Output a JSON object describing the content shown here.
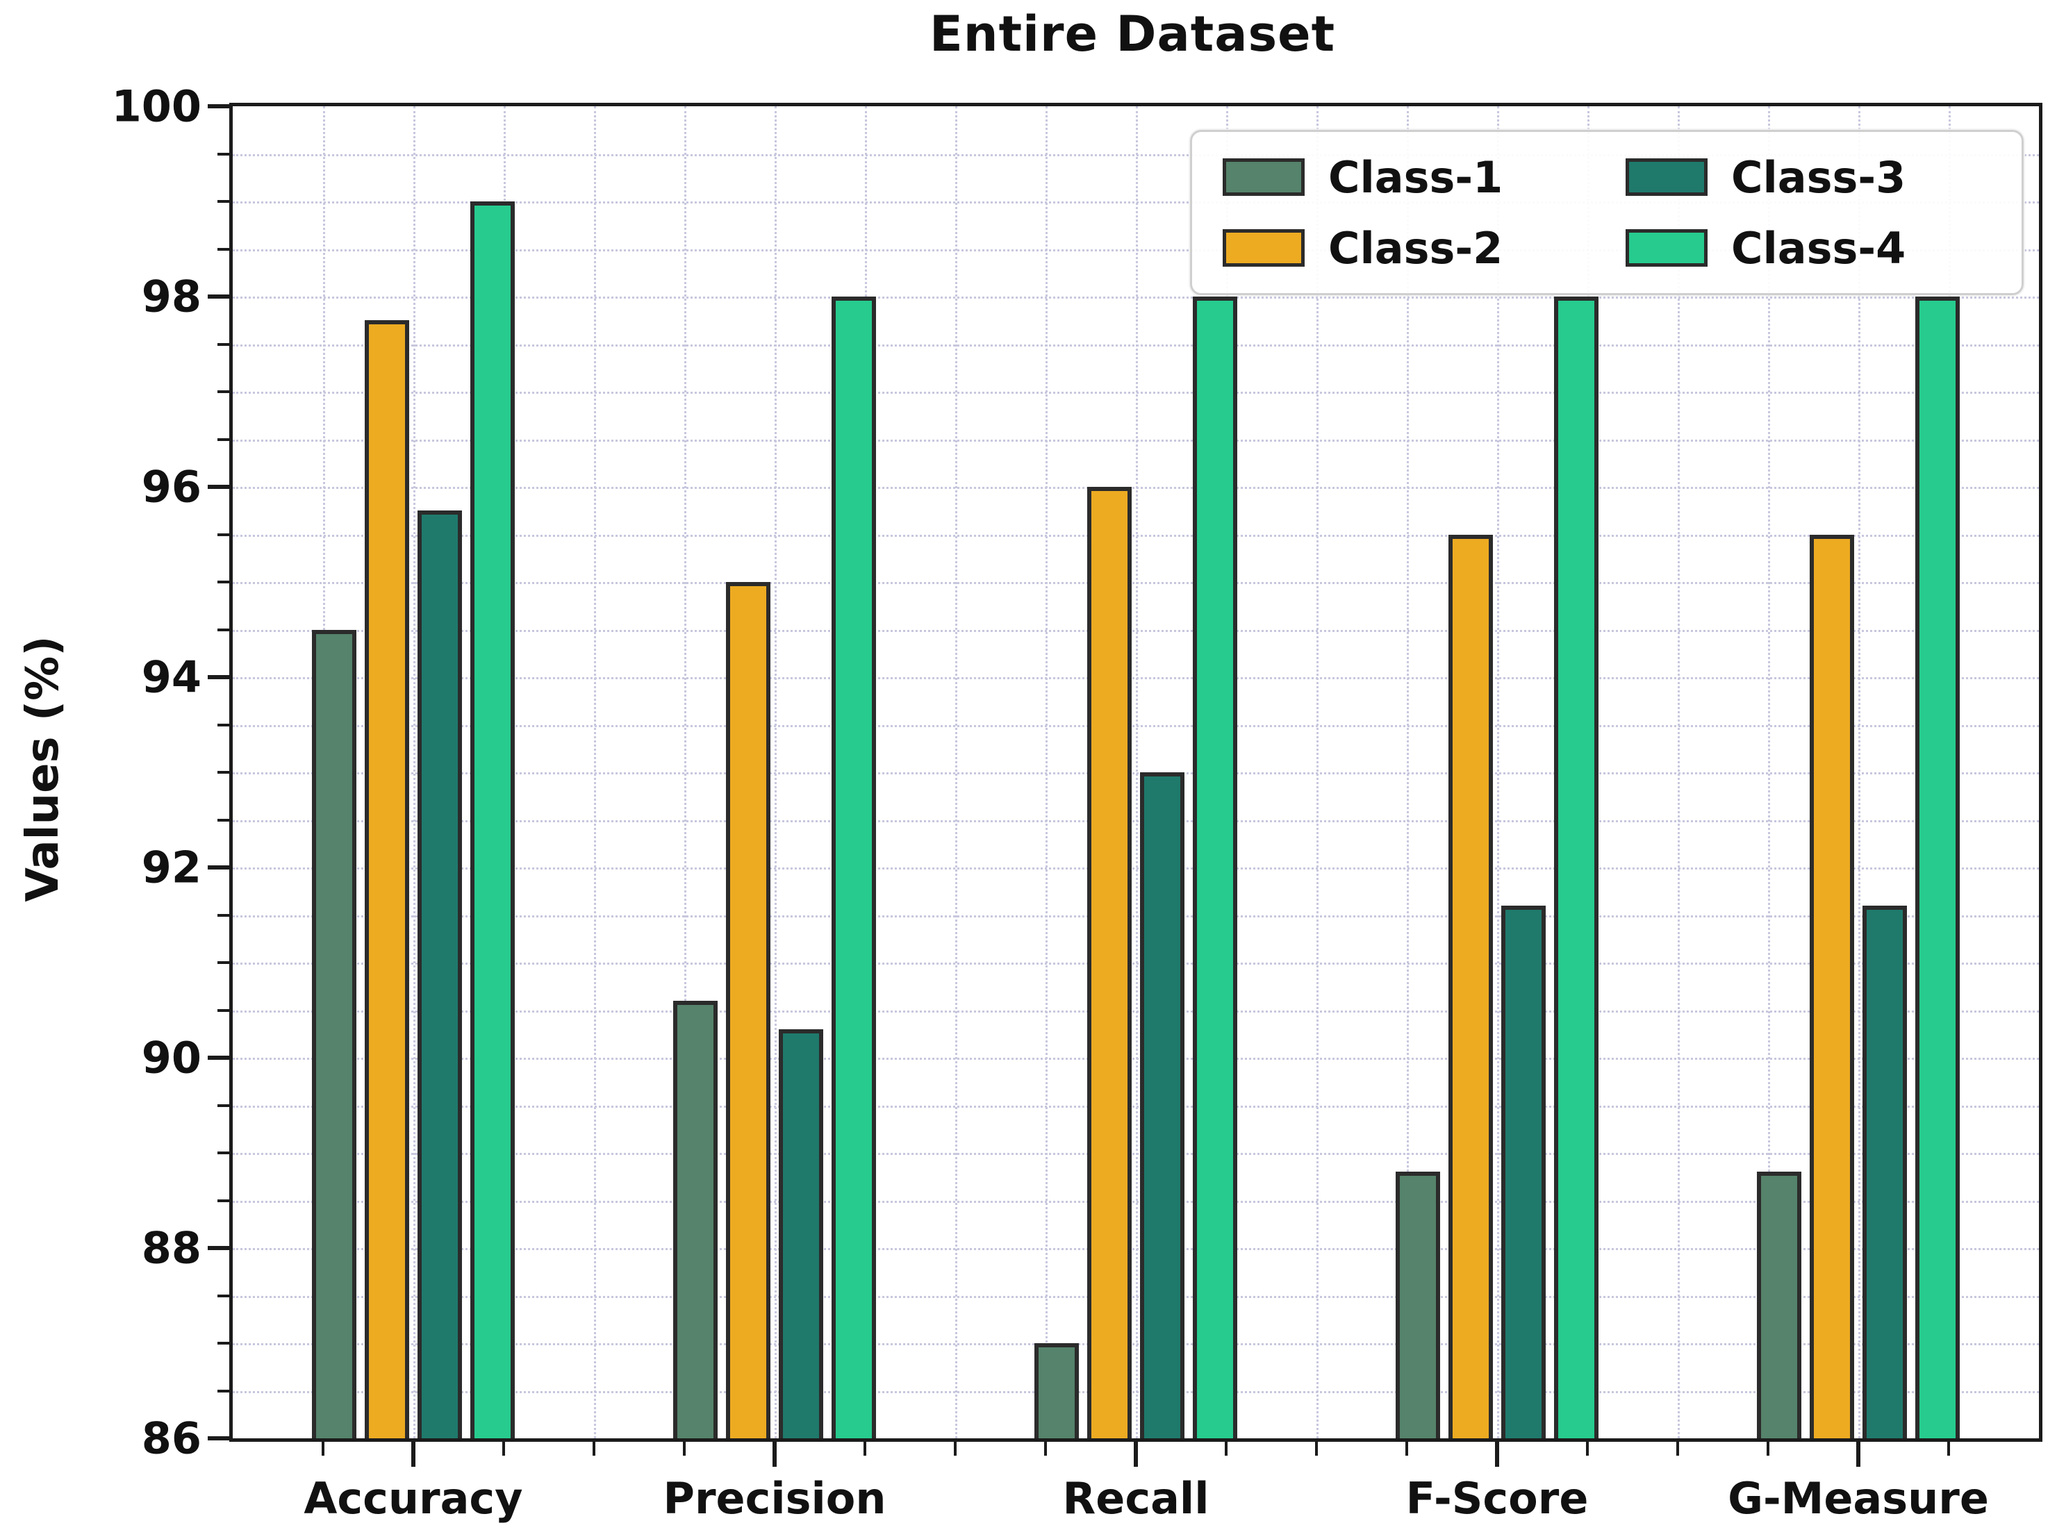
{
  "figure": {
    "title": "Entire Dataset"
  },
  "axes": {
    "ylabel": "Values (%)",
    "ylim": [
      86,
      100
    ],
    "ytick_major_step": 2,
    "ytick_minor_step": 0.5,
    "ytick_labels": [
      "86",
      "88",
      "90",
      "92",
      "94",
      "96",
      "98",
      "100"
    ],
    "xtick_labels": [
      "Accuracy",
      "Precision",
      "Recall",
      "F-Score",
      "G-Measure"
    ]
  },
  "legend": {
    "position": "upper-right",
    "columns": 2,
    "labels": [
      "Class-1",
      "Class-2",
      "Class-3",
      "Class-4"
    ]
  },
  "colors": {
    "class1": "#55836B",
    "class2": "#EDAB22",
    "class3": "#1F7A6C",
    "class4": "#27CB8E",
    "bar_border": "#2B2B2B",
    "grid": "#C7C7DE",
    "spine": "#1B1B1B",
    "legend_border": "#CFCFCF",
    "background": "#FFFFFF",
    "text": "#111111"
  },
  "chart_data": {
    "type": "bar",
    "title": "Entire Dataset",
    "xlabel": "",
    "ylabel": "Values (%)",
    "ylim": [
      86,
      100
    ],
    "grid": true,
    "legend_position": "upper right",
    "categories": [
      "Accuracy",
      "Precision",
      "Recall",
      "F-Score",
      "G-Measure"
    ],
    "series": [
      {
        "name": "Class-1",
        "color": "#55836B",
        "values": [
          94.5,
          90.6,
          87.0,
          88.8,
          88.8
        ]
      },
      {
        "name": "Class-2",
        "color": "#EDAB22",
        "values": [
          97.75,
          95.0,
          96.0,
          95.5,
          95.5
        ]
      },
      {
        "name": "Class-3",
        "color": "#1F7A6C",
        "values": [
          95.75,
          90.3,
          93.0,
          91.6,
          91.6
        ]
      },
      {
        "name": "Class-4",
        "color": "#27CB8E",
        "values": [
          99.0,
          98.0,
          98.0,
          98.0,
          98.0
        ]
      }
    ]
  }
}
